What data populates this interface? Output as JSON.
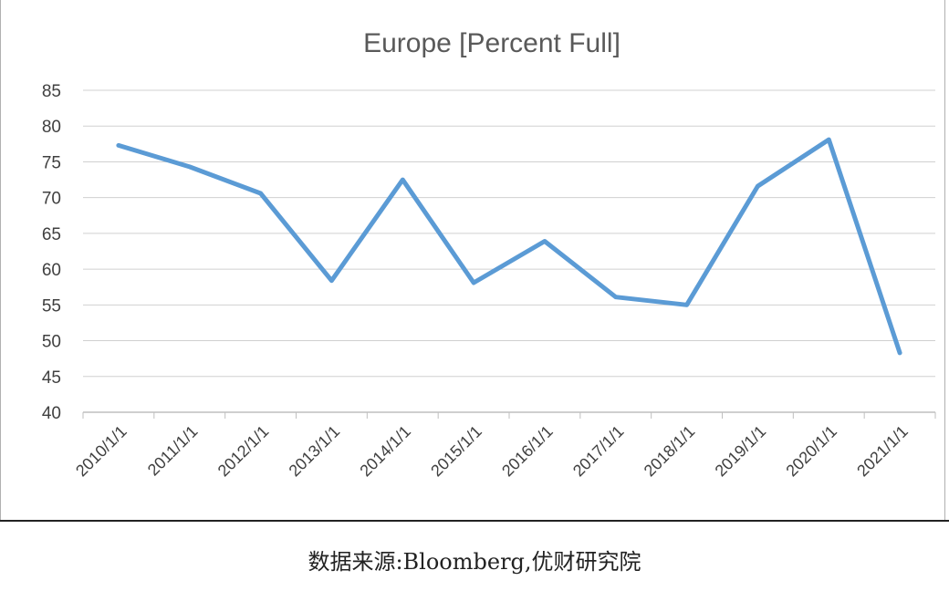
{
  "chart_data": {
    "type": "line",
    "title": "Europe [Percent Full]",
    "categories": [
      "2010/1/1",
      "2011/1/1",
      "2012/1/1",
      "2013/1/1",
      "2014/1/1",
      "2015/1/1",
      "2016/1/1",
      "2017/1/1",
      "2018/1/1",
      "2019/1/1",
      "2020/1/1",
      "2021/1/1"
    ],
    "series": [
      {
        "values": [
          77.3,
          74.3,
          70.6,
          58.4,
          72.5,
          58.1,
          63.9,
          56.1,
          55.0,
          71.6,
          78.1,
          48.3
        ]
      }
    ],
    "xlabel": "",
    "ylabel": "",
    "ylim": [
      40,
      85
    ],
    "yticks": [
      40,
      45,
      50,
      55,
      60,
      65,
      70,
      75,
      80,
      85
    ],
    "grid": true,
    "line_color": "#5b9bd5"
  },
  "source": "数据来源:Bloomberg,优财研究院"
}
